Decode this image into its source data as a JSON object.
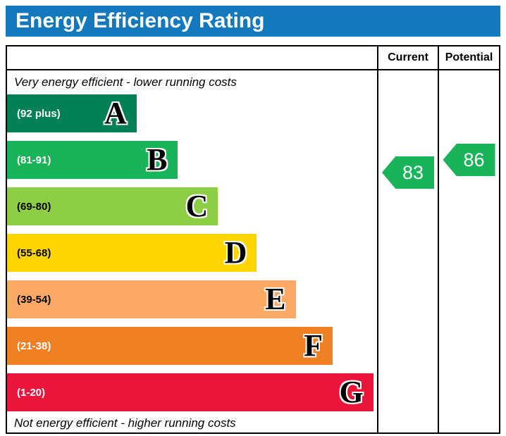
{
  "title": "Energy Efficiency Rating",
  "header_color": "#1479bc",
  "columns": {
    "current": "Current",
    "potential": "Potential"
  },
  "captions": {
    "top": "Very energy efficient - lower running costs",
    "bottom": "Not energy efficient - higher running costs"
  },
  "bands": [
    {
      "letter": "A",
      "label": "(92 plus)",
      "color": "#008054",
      "text_color": "#ffffff",
      "width": "35%"
    },
    {
      "letter": "B",
      "label": "(81-91)",
      "color": "#19b459",
      "text_color": "#ffffff",
      "width": "46%"
    },
    {
      "letter": "C",
      "label": "(69-80)",
      "color": "#8dce46",
      "text_color": "#000000",
      "width": "57%"
    },
    {
      "letter": "D",
      "label": "(55-68)",
      "color": "#ffd500",
      "text_color": "#000000",
      "width": "67.5%"
    },
    {
      "letter": "E",
      "label": "(39-54)",
      "color": "#fcaa65",
      "text_color": "#000000",
      "width": "78%"
    },
    {
      "letter": "F",
      "label": "(21-38)",
      "color": "#ef8023",
      "text_color": "#ffffff",
      "width": "88%"
    },
    {
      "letter": "G",
      "label": "(1-20)",
      "color": "#e9153b",
      "text_color": "#ffffff",
      "width": "99%"
    }
  ],
  "ratings": {
    "current": {
      "value": "83",
      "color": "#19b459"
    },
    "potential": {
      "value": "86",
      "color": "#19b459"
    }
  },
  "chart_data": {
    "type": "bar",
    "title": "Energy Efficiency Rating",
    "categories": [
      "A",
      "B",
      "C",
      "D",
      "E",
      "F",
      "G"
    ],
    "band_ranges": [
      "92 plus",
      "81-91",
      "69-80",
      "55-68",
      "39-54",
      "21-38",
      "1-20"
    ],
    "band_colors": [
      "#008054",
      "#19b459",
      "#8dce46",
      "#ffd500",
      "#fcaa65",
      "#ef8023",
      "#e9153b"
    ],
    "bar_widths_pct": [
      35,
      46,
      57,
      67.5,
      78,
      88,
      99
    ],
    "current_rating": 83,
    "potential_rating": 86,
    "annotations": [
      "Very energy efficient - lower running costs",
      "Not energy efficient - higher running costs"
    ],
    "legend_position": "none",
    "grid": false
  }
}
